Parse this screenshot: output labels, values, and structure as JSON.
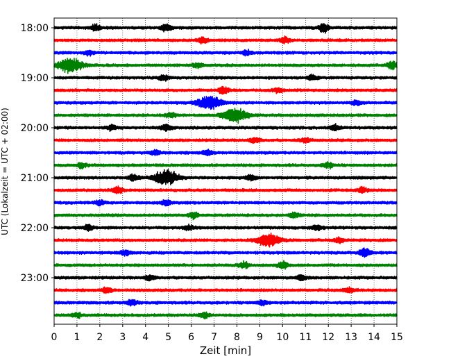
{
  "chart_data": {
    "type": "line",
    "title": "",
    "xlabel": "Zeit  [min]",
    "ylabel": "UTC (Lokalzeit = UTC + 02:00)",
    "xlim": [
      0,
      15
    ],
    "x_ticks": [
      "0",
      "1",
      "2",
      "3",
      "4",
      "5",
      "6",
      "7",
      "8",
      "9",
      "10",
      "11",
      "12",
      "13",
      "14",
      "15"
    ],
    "y_ticks": [
      "18:00",
      "19:00",
      "20:00",
      "21:00",
      "22:00",
      "23:00"
    ],
    "grid": "vertical dotted",
    "trace_interval_min": 15,
    "trace_colors": [
      "#000000",
      "#ff0000",
      "#0000ff",
      "#008000"
    ],
    "traces": [
      {
        "start": "18:00",
        "events": [
          {
            "t": 1.8,
            "amp": 5
          },
          {
            "t": 4.9,
            "amp": 6
          },
          {
            "t": 11.8,
            "amp": 7
          }
        ]
      },
      {
        "start": "18:15",
        "events": [
          {
            "t": 6.5,
            "amp": 5
          },
          {
            "t": 10.1,
            "amp": 5
          }
        ]
      },
      {
        "start": "18:30",
        "events": [
          {
            "t": 1.5,
            "amp": 4
          },
          {
            "t": 8.4,
            "amp": 4
          }
        ]
      },
      {
        "start": "18:45",
        "events": [
          {
            "t": 0.7,
            "amp": 12
          },
          {
            "t": 6.3,
            "amp": 4
          },
          {
            "t": 14.8,
            "amp": 6
          }
        ]
      },
      {
        "start": "19:00",
        "events": [
          {
            "t": 4.8,
            "amp": 4
          },
          {
            "t": 11.3,
            "amp": 4
          }
        ]
      },
      {
        "start": "19:15",
        "events": [
          {
            "t": 7.4,
            "amp": 6
          },
          {
            "t": 9.8,
            "amp": 4
          }
        ]
      },
      {
        "start": "19:30",
        "events": [
          {
            "t": 6.8,
            "amp": 11
          },
          {
            "t": 13.2,
            "amp": 4
          }
        ]
      },
      {
        "start": "19:45",
        "events": [
          {
            "t": 5.1,
            "amp": 4
          },
          {
            "t": 7.9,
            "amp": 12
          }
        ]
      },
      {
        "start": "20:00",
        "events": [
          {
            "t": 2.5,
            "amp": 4
          },
          {
            "t": 4.9,
            "amp": 5
          },
          {
            "t": 12.3,
            "amp": 5
          }
        ]
      },
      {
        "start": "20:15",
        "events": [
          {
            "t": 8.8,
            "amp": 4
          },
          {
            "t": 11.0,
            "amp": 4
          }
        ]
      },
      {
        "start": "20:30",
        "events": [
          {
            "t": 4.4,
            "amp": 4
          },
          {
            "t": 6.7,
            "amp": 4
          }
        ]
      },
      {
        "start": "20:45",
        "events": [
          {
            "t": 1.2,
            "amp": 4
          },
          {
            "t": 12.0,
            "amp": 5
          }
        ]
      },
      {
        "start": "21:00",
        "events": [
          {
            "t": 4.9,
            "amp": 13
          },
          {
            "t": 3.5,
            "amp": 5
          },
          {
            "t": 8.6,
            "amp": 4
          }
        ]
      },
      {
        "start": "21:15",
        "events": [
          {
            "t": 2.8,
            "amp": 6
          },
          {
            "t": 13.5,
            "amp": 4
          }
        ]
      },
      {
        "start": "21:30",
        "events": [
          {
            "t": 2.0,
            "amp": 4
          },
          {
            "t": 4.9,
            "amp": 4
          }
        ]
      },
      {
        "start": "21:45",
        "events": [
          {
            "t": 6.1,
            "amp": 5
          },
          {
            "t": 10.5,
            "amp": 4
          }
        ]
      },
      {
        "start": "22:00",
        "events": [
          {
            "t": 1.5,
            "amp": 4
          },
          {
            "t": 5.9,
            "amp": 4
          },
          {
            "t": 11.5,
            "amp": 4
          }
        ]
      },
      {
        "start": "22:15",
        "events": [
          {
            "t": 9.4,
            "amp": 10
          },
          {
            "t": 12.5,
            "amp": 4
          }
        ]
      },
      {
        "start": "22:30",
        "events": [
          {
            "t": 3.1,
            "amp": 4
          },
          {
            "t": 13.6,
            "amp": 8
          }
        ]
      },
      {
        "start": "22:45",
        "events": [
          {
            "t": 8.3,
            "amp": 5
          },
          {
            "t": 10.0,
            "amp": 6
          }
        ]
      },
      {
        "start": "23:00",
        "events": [
          {
            "t": 4.2,
            "amp": 4
          },
          {
            "t": 10.8,
            "amp": 4
          }
        ]
      },
      {
        "start": "23:15",
        "events": [
          {
            "t": 2.3,
            "amp": 4
          },
          {
            "t": 12.9,
            "amp": 4
          }
        ]
      },
      {
        "start": "23:30",
        "events": [
          {
            "t": 3.4,
            "amp": 5
          },
          {
            "t": 9.1,
            "amp": 4
          }
        ]
      },
      {
        "start": "23:45",
        "events": [
          {
            "t": 1.0,
            "amp": 4
          },
          {
            "t": 6.6,
            "amp": 4
          }
        ]
      }
    ]
  }
}
